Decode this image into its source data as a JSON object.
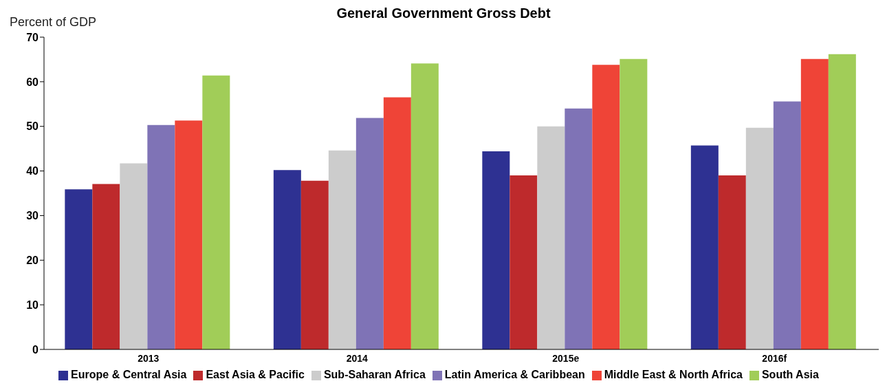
{
  "chart_data": {
    "type": "bar",
    "title": "General Government Gross Debt",
    "ylabel": "Percent of GDP",
    "categories": [
      "2013",
      "2014",
      "2015e",
      "2016f"
    ],
    "series": [
      {
        "name": "Europe & Central Asia",
        "color": "#2e3192",
        "values": [
          35.9,
          40.2,
          44.4,
          45.7
        ]
      },
      {
        "name": "East Asia & Pacific",
        "color": "#be2a2c",
        "values": [
          37.1,
          37.8,
          39.0,
          39.0
        ]
      },
      {
        "name": "Sub-Saharan Africa",
        "color": "#cccccc",
        "values": [
          41.7,
          44.6,
          50.0,
          49.7
        ]
      },
      {
        "name": "Latin America & Caribbean",
        "color": "#7f73b6",
        "values": [
          50.3,
          51.9,
          54.0,
          55.6
        ]
      },
      {
        "name": "Middle East & North Africa",
        "color": "#ef4437",
        "values": [
          51.3,
          56.5,
          63.8,
          65.1
        ]
      },
      {
        "name": "South Asia",
        "color": "#a1cd58",
        "values": [
          61.4,
          64.1,
          65.1,
          66.2
        ]
      }
    ],
    "ylim": [
      0,
      70
    ],
    "yticks": [
      0,
      10,
      20,
      30,
      40,
      50,
      60,
      70
    ],
    "grid": false,
    "legend": "bottom"
  }
}
